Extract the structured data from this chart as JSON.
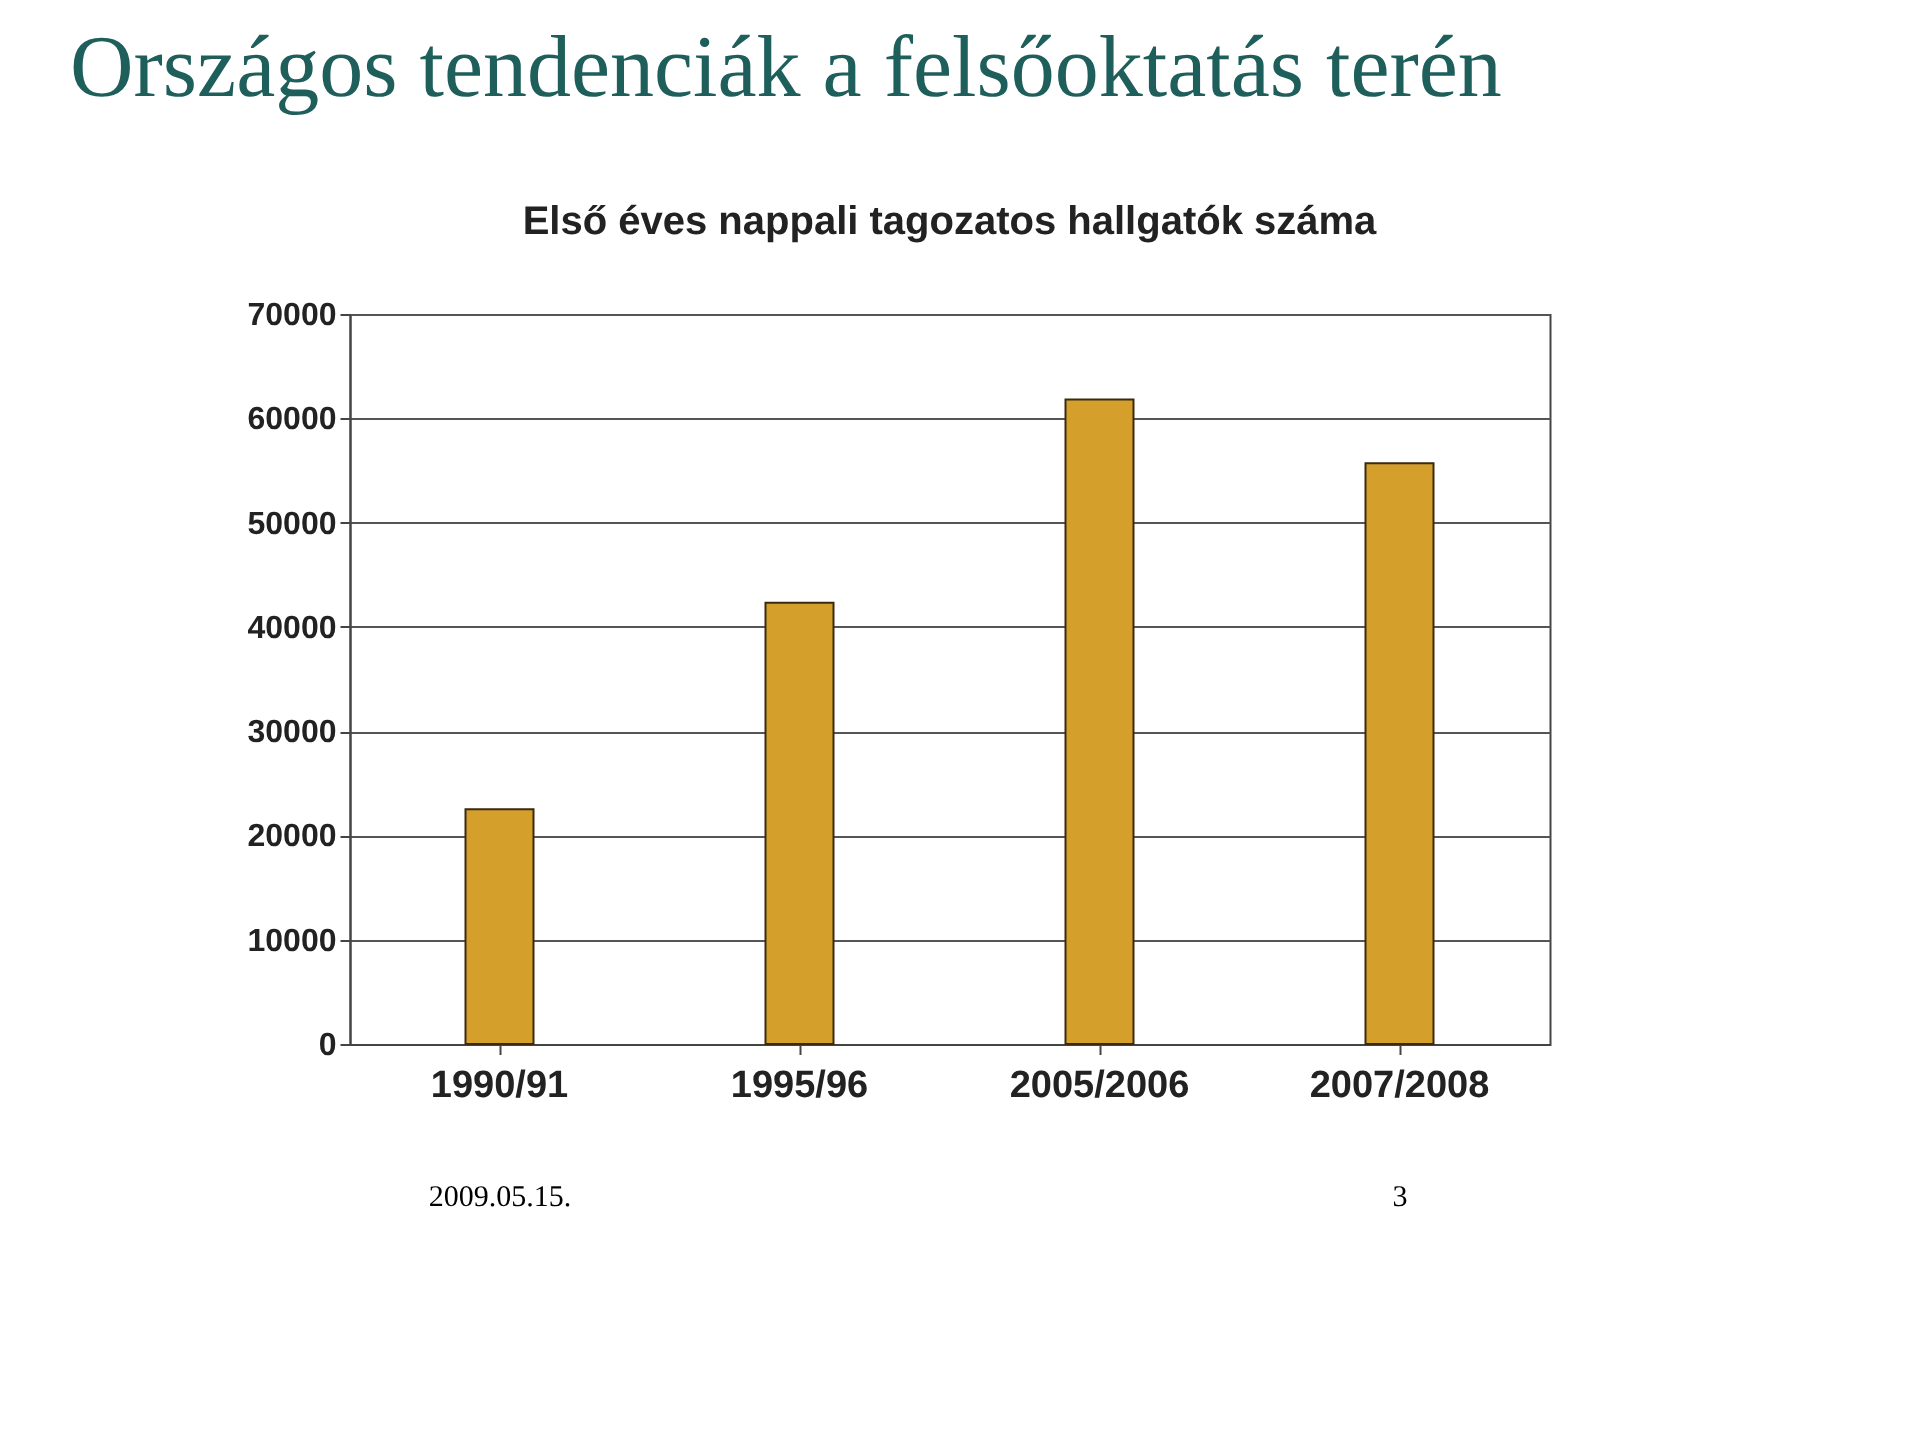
{
  "chart_data": {
    "type": "bar",
    "title": "Országos tendenciák a felsőoktatás terén",
    "subtitle": "Első éves nappali tagozatos hallgatók száma",
    "categories": [
      "1990/91",
      "1995/96",
      "2005/2006",
      "2007/2008"
    ],
    "values": [
      22500,
      42300,
      61800,
      55700
    ],
    "color": "#d4a02b",
    "ylim": [
      0,
      70000
    ],
    "yticks": [
      0,
      10000,
      20000,
      30000,
      40000,
      50000,
      60000,
      70000
    ],
    "grid": "y",
    "annotations": [
      "2009.05.15.",
      "3"
    ]
  }
}
